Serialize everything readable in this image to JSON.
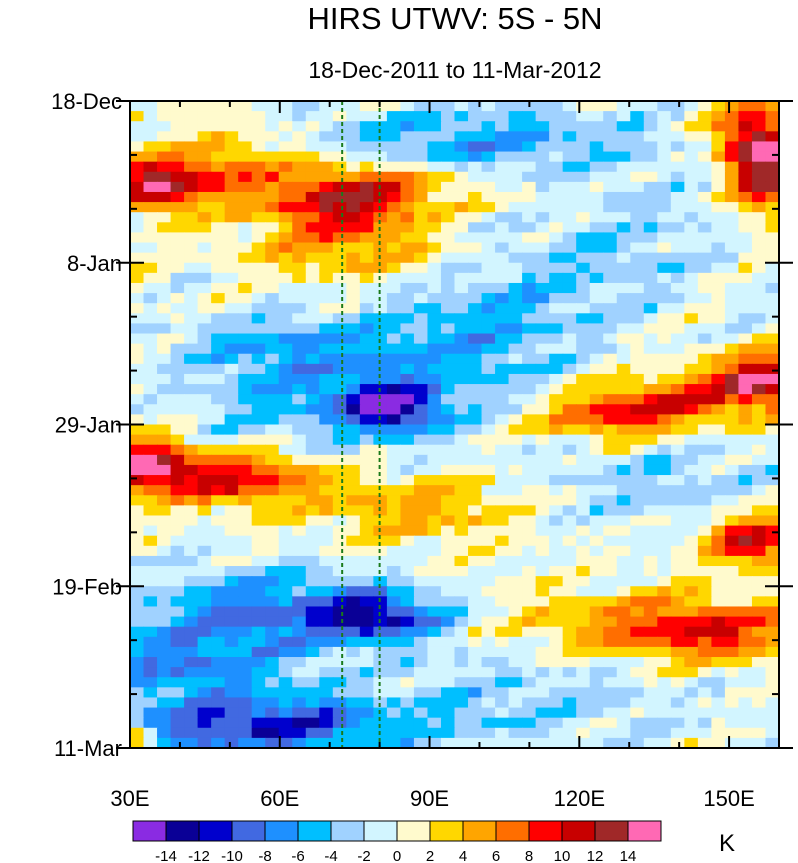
{
  "chart_data": {
    "type": "heatmap",
    "title": "HIRS UTWV: 5S - 5N",
    "subtitle": "18-Dec-2011 to 11-Mar-2012",
    "xlabel": "",
    "ylabel": "",
    "x_range": [
      30,
      160
    ],
    "y_range_days": [
      0,
      84
    ],
    "x_ticks": [
      {
        "value": 30,
        "label": "30E"
      },
      {
        "value": 60,
        "label": "60E"
      },
      {
        "value": 90,
        "label": "90E"
      },
      {
        "value": 120,
        "label": "120E"
      },
      {
        "value": 150,
        "label": "150E"
      }
    ],
    "y_ticks": [
      {
        "day": 0,
        "label": "18-Dec"
      },
      {
        "day": 21,
        "label": "8-Jan"
      },
      {
        "day": 42,
        "label": "29-Jan"
      },
      {
        "day": 63,
        "label": "19-Feb"
      },
      {
        "day": 84,
        "label": "11-Mar"
      }
    ],
    "reference_lines_lon": [
      72.5,
      80
    ],
    "colorbar": {
      "unit": "K",
      "levels": [
        -14,
        -12,
        -10,
        -8,
        -6,
        -4,
        -2,
        0,
        2,
        4,
        6,
        8,
        10,
        12,
        14
      ],
      "level_labels": [
        "-14",
        "-12",
        "-10",
        "-8",
        "-6",
        "-4",
        "-2",
        "0",
        "2",
        "4",
        "6",
        "8",
        "10",
        "12",
        "14"
      ],
      "colors": [
        "#8a2be2",
        "#0a0096",
        "#0000cd",
        "#4169e1",
        "#1e90ff",
        "#00bfff",
        "#a0d2ff",
        "#d2f5ff",
        "#fffacd",
        "#ffd700",
        "#ffa500",
        "#ff6e00",
        "#ff0000",
        "#c80000",
        "#a02828",
        "#ff69b4"
      ]
    },
    "anomaly_centers": [
      {
        "lon": 35,
        "day": 11,
        "value": 11,
        "slon": 7,
        "sday": 2.2
      },
      {
        "lon": 48,
        "day": 9,
        "value": 6,
        "slon": 12,
        "sday": 3.5
      },
      {
        "lon": 72,
        "day": 14,
        "value": 9,
        "slon": 10,
        "sday": 2.8
      },
      {
        "lon": 80,
        "day": 11,
        "value": 6,
        "slon": 12,
        "sday": 2.5
      },
      {
        "lon": 75,
        "day": 20,
        "value": 4.5,
        "slon": 14,
        "sday": 2.5
      },
      {
        "lon": 157,
        "day": 10,
        "value": 13,
        "slon": 5,
        "sday": 3.5
      },
      {
        "lon": 155,
        "day": 4,
        "value": 10,
        "slon": 6,
        "sday": 3
      },
      {
        "lon": 157,
        "day": 36,
        "value": 14,
        "slon": 7,
        "sday": 2.2
      },
      {
        "lon": 140,
        "day": 39,
        "value": 8,
        "slon": 12,
        "sday": 2.3
      },
      {
        "lon": 124,
        "day": 41,
        "value": 7,
        "slon": 10,
        "sday": 2
      },
      {
        "lon": 33,
        "day": 47,
        "value": 13,
        "slon": 6,
        "sday": 2.3
      },
      {
        "lon": 50,
        "day": 49,
        "value": 10,
        "slon": 12,
        "sday": 2.5
      },
      {
        "lon": 88,
        "day": 53,
        "value": 5,
        "slon": 14,
        "sday": 3
      },
      {
        "lon": 155,
        "day": 57,
        "value": 11,
        "slon": 7,
        "sday": 2.5
      },
      {
        "lon": 148,
        "day": 69,
        "value": 9,
        "slon": 12,
        "sday": 2.8
      },
      {
        "lon": 125,
        "day": 68,
        "value": 5,
        "slon": 14,
        "sday": 3
      },
      {
        "lon": 31,
        "day": 83,
        "value": 8,
        "slon": 3,
        "sday": 1.5
      },
      {
        "lon": 75,
        "day": 39,
        "value": -6,
        "slon": 20,
        "sday": 4
      },
      {
        "lon": 82,
        "day": 40,
        "value": -10,
        "slon": 6,
        "sday": 2
      },
      {
        "lon": 98,
        "day": 30,
        "value": -5,
        "slon": 15,
        "sday": 5
      },
      {
        "lon": 100,
        "day": 5,
        "value": -6,
        "slon": 25,
        "sday": 3
      },
      {
        "lon": 58,
        "day": 66,
        "value": -8,
        "slon": 20,
        "sday": 3.5
      },
      {
        "lon": 80,
        "day": 67,
        "value": -10,
        "slon": 8,
        "sday": 2
      },
      {
        "lon": 55,
        "day": 81,
        "value": -11,
        "slon": 20,
        "sday": 2.8
      },
      {
        "lon": 40,
        "day": 73,
        "value": -7,
        "slon": 15,
        "sday": 3
      },
      {
        "lon": 110,
        "day": 78,
        "value": -3,
        "slon": 25,
        "sday": 5
      },
      {
        "lon": 60,
        "day": 32,
        "value": -5,
        "slon": 15,
        "sday": 3
      },
      {
        "lon": 120,
        "day": 22,
        "value": -3,
        "slon": 15,
        "sday": 5
      },
      {
        "lon": 140,
        "day": 50,
        "value": -3,
        "slon": 18,
        "sday": 4
      },
      {
        "lon": 140,
        "day": 15,
        "value": -2,
        "slon": 15,
        "sday": 4
      }
    ]
  }
}
